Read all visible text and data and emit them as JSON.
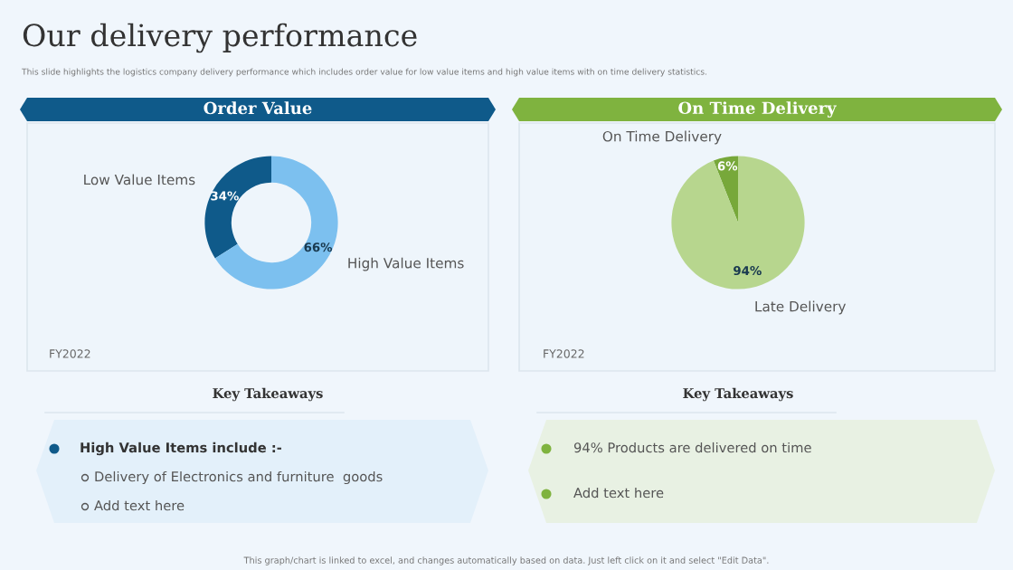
{
  "chart_data": [
    {
      "type": "donut",
      "title": "Order Value",
      "categories": [
        "Low Value Items",
        "High Value Items"
      ],
      "values": [
        34,
        66
      ],
      "colors": [
        "#0f5a8a",
        "#7cc0ef"
      ],
      "value_labels": [
        "34%",
        "66%"
      ],
      "legend": false,
      "annotations": [
        "Our delivery performance",
        "This slide highlights the logistics company delivery performance which includes order value for low value items and high value items with on time delivery statistics.",
        "FY2022",
        "Key Takeaways",
        "High Value Items include :-",
        "Delivery of Electronics and furniture  goods",
        "Add text here"
      ]
    },
    {
      "type": "pie",
      "title": "On Time Delivery",
      "categories": [
        "On Time Delivery",
        "Late Delivery"
      ],
      "values": [
        6,
        94
      ],
      "colors": [
        "#77a83a",
        "#b7d68e"
      ],
      "value_labels": [
        "6%",
        "94%"
      ],
      "legend": false,
      "annotations": [
        "FY2022",
        "Key Takeaways",
        "94% Products are delivered on time",
        "Add text here",
        "This graph/chart is linked to excel, and changes automatically based on data. Just left click on it and select \"Edit Data\"."
      ]
    }
  ]
}
